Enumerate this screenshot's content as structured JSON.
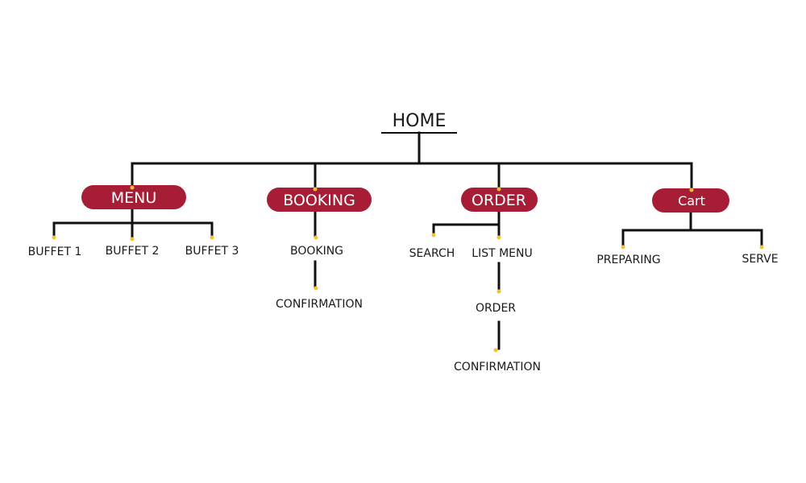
{
  "root": {
    "label": "HOME"
  },
  "branches": {
    "menu": {
      "label": "MENU",
      "children": [
        "BUFFET 1",
        "BUFFET 2",
        "BUFFET 3"
      ]
    },
    "booking": {
      "label": "BOOKING",
      "flow": [
        "BOOKING",
        "CONFIRMATION"
      ]
    },
    "order": {
      "label": "ORDER",
      "children": [
        "SEARCH",
        "LIST MENU"
      ],
      "flow": [
        "ORDER",
        "CONFIRMATION"
      ]
    },
    "cart": {
      "label": "Cart",
      "children": [
        "PREPARING",
        "SERVE"
      ]
    }
  },
  "colors": {
    "pill": "#a71d36",
    "connector": "#111111",
    "node_dot": "#f2c230"
  }
}
